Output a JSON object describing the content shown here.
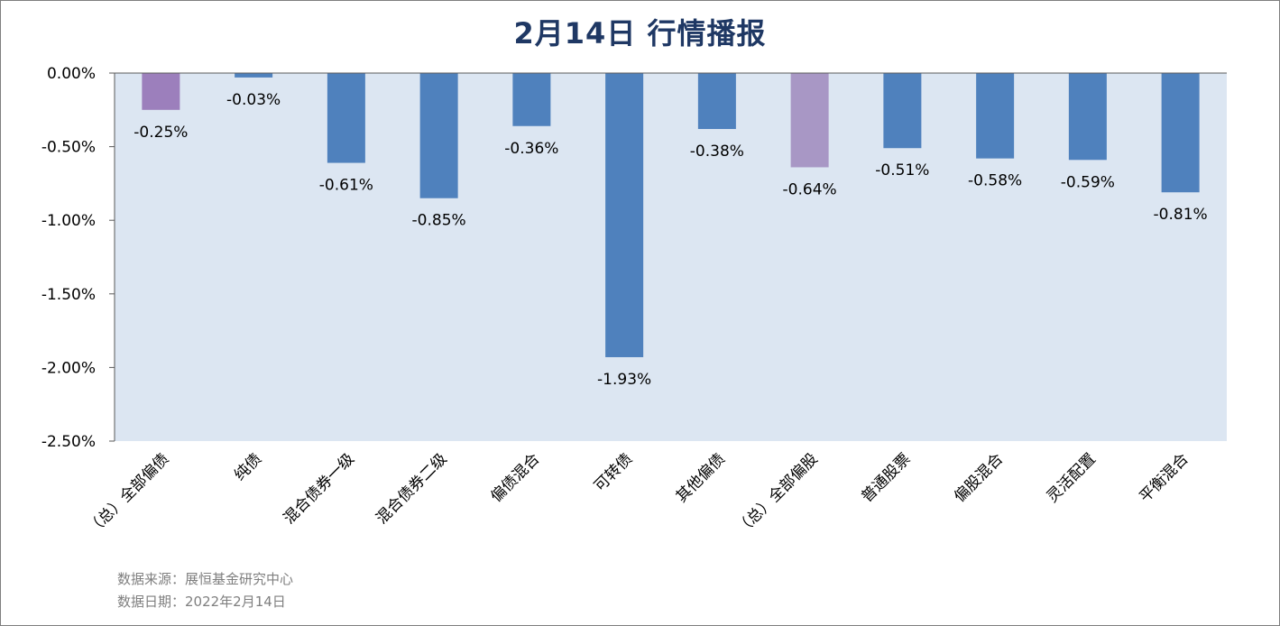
{
  "chart_data": {
    "type": "bar",
    "title": "2月14日  行情播报",
    "categories": [
      "（总）全部偏债",
      "纯债",
      "混合债券一级",
      "混合债券二级",
      "偏债混合",
      "可转债",
      "其他偏债",
      "（总）全部偏股",
      "普通股票",
      "偏股混合",
      "灵活配置",
      "平衡混合"
    ],
    "values": [
      -0.25,
      -0.03,
      -0.61,
      -0.85,
      -0.36,
      -1.93,
      -0.38,
      -0.64,
      -0.51,
      -0.58,
      -0.59,
      -0.81
    ],
    "data_labels": [
      "-0.25%",
      "-0.03%",
      "-0.61%",
      "-0.85%",
      "-0.36%",
      "-1.93%",
      "-0.38%",
      "-0.64%",
      "-0.51%",
      "-0.58%",
      "-0.59%",
      "-0.81%"
    ],
    "highlighted": [
      0,
      7
    ],
    "ylim": [
      -2.5,
      0
    ],
    "yticks": [
      0,
      -0.5,
      -1.0,
      -1.5,
      -2.0,
      -2.5
    ],
    "ytick_labels": [
      "0.00%",
      "-0.50%",
      "-1.00%",
      "-1.50%",
      "-2.00%",
      "-2.50%"
    ],
    "xlabel": "",
    "ylabel": "",
    "grid": false,
    "legend": "none",
    "colors": {
      "bar": "#4f81bd",
      "bar_highlight_first": "#9c7fbc",
      "bar_highlight_second": "#a897c5",
      "plot_background": "#dce6f2",
      "axis": "#595959",
      "text": "#000000"
    }
  },
  "footer": {
    "source_line": "数据来源：展恒基金研究中心",
    "date_line": "数据日期：2022年2月14日"
  }
}
